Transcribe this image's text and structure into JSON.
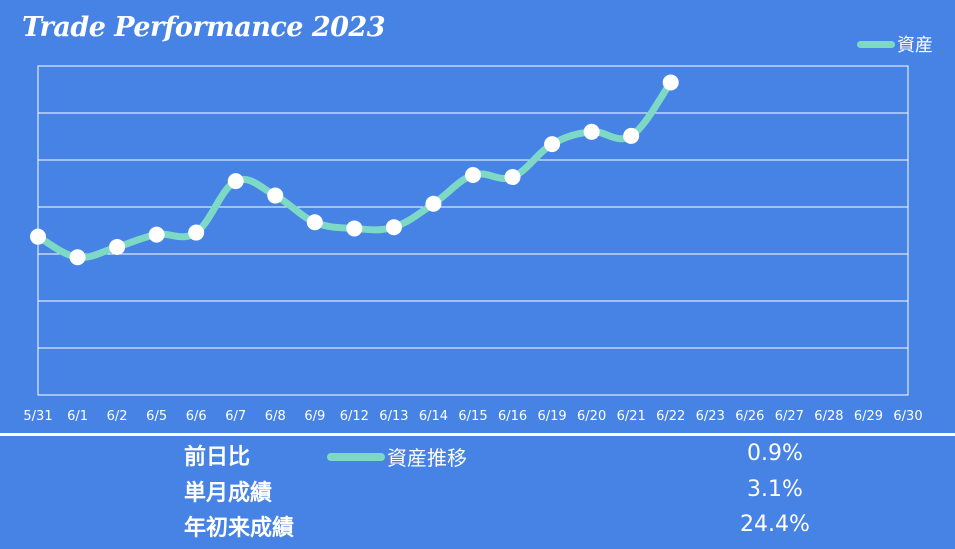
{
  "header": {
    "title": "Trade Performance 2023"
  },
  "colors": {
    "background": "#4683e4",
    "line": "#7dd9c6",
    "marker": "#ffffff",
    "grid": "#ffffff"
  },
  "chart_data": {
    "type": "line",
    "categories": [
      "5/31",
      "6/1",
      "6/2",
      "6/5",
      "6/6",
      "6/7",
      "6/8",
      "6/9",
      "6/12",
      "6/13",
      "6/14",
      "6/15",
      "6/16",
      "6/19",
      "6/20",
      "6/21",
      "6/22",
      "6/23",
      "6/26",
      "6/27",
      "6/28",
      "6/29",
      "6/30"
    ],
    "series": [
      {
        "name": "資産",
        "values": [
          38.5,
          33.5,
          36.0,
          39.0,
          39.5,
          52.0,
          48.5,
          42.0,
          40.5,
          40.8,
          46.5,
          53.5,
          53.0,
          61.0,
          64.0,
          63.0,
          76.0,
          null,
          null,
          null,
          null,
          null,
          null
        ]
      }
    ],
    "ylim": [
      0,
      80
    ],
    "grid": true,
    "gridlines": 7,
    "legend_placement": "top-right"
  },
  "stats": {
    "legend_label": "資産推移",
    "rows": [
      {
        "label": "前日比",
        "value": "0.9%"
      },
      {
        "label": "単月成績",
        "value": "3.1%"
      },
      {
        "label": "年初来成績",
        "value": "24.4%"
      }
    ]
  }
}
